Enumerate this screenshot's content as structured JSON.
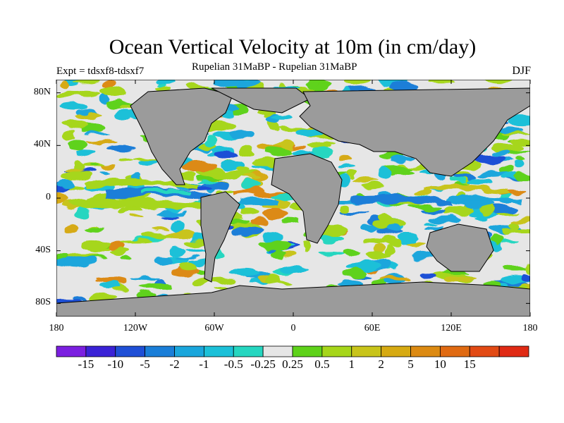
{
  "title": "Ocean Vertical Velocity at 10m (in cm/day)",
  "experiment": "Expt = tdsxf8-tdsxf7",
  "subtitle": "Rupelian  31MaBP - Rupelian  31MaBP",
  "season": "DJF",
  "lat_ticks": [
    {
      "label": "80N",
      "value": 80
    },
    {
      "label": "40N",
      "value": 40
    },
    {
      "label": "0",
      "value": 0
    },
    {
      "label": "40S",
      "value": -40
    },
    {
      "label": "80S",
      "value": -80
    }
  ],
  "lon_ticks": [
    {
      "label": "180",
      "value": -180
    },
    {
      "label": "120W",
      "value": -120
    },
    {
      "label": "60W",
      "value": -60
    },
    {
      "label": "0",
      "value": 0
    },
    {
      "label": "60E",
      "value": 60
    },
    {
      "label": "120E",
      "value": 120
    },
    {
      "label": "180",
      "value": 180
    }
  ],
  "colorbar": {
    "colors": [
      "#7b1fe0",
      "#3a22d6",
      "#1f4fd6",
      "#1a7ed8",
      "#1aa6dc",
      "#1cc0d8",
      "#26d6c0",
      "#e6e6e6",
      "#5ed21a",
      "#a6d61a",
      "#c8c41a",
      "#d6aa12",
      "#dc8a12",
      "#e06a12",
      "#e24a14",
      "#e02a14"
    ],
    "labels": [
      "-15",
      "-10",
      "-5",
      "-2",
      "-1",
      "-0.5",
      "-0.25",
      "0.25",
      "0.5",
      "1",
      "2",
      "5",
      "10",
      "15"
    ]
  },
  "colors": {
    "land": "#9b9b9b",
    "neutral": "#e6e6e6"
  }
}
